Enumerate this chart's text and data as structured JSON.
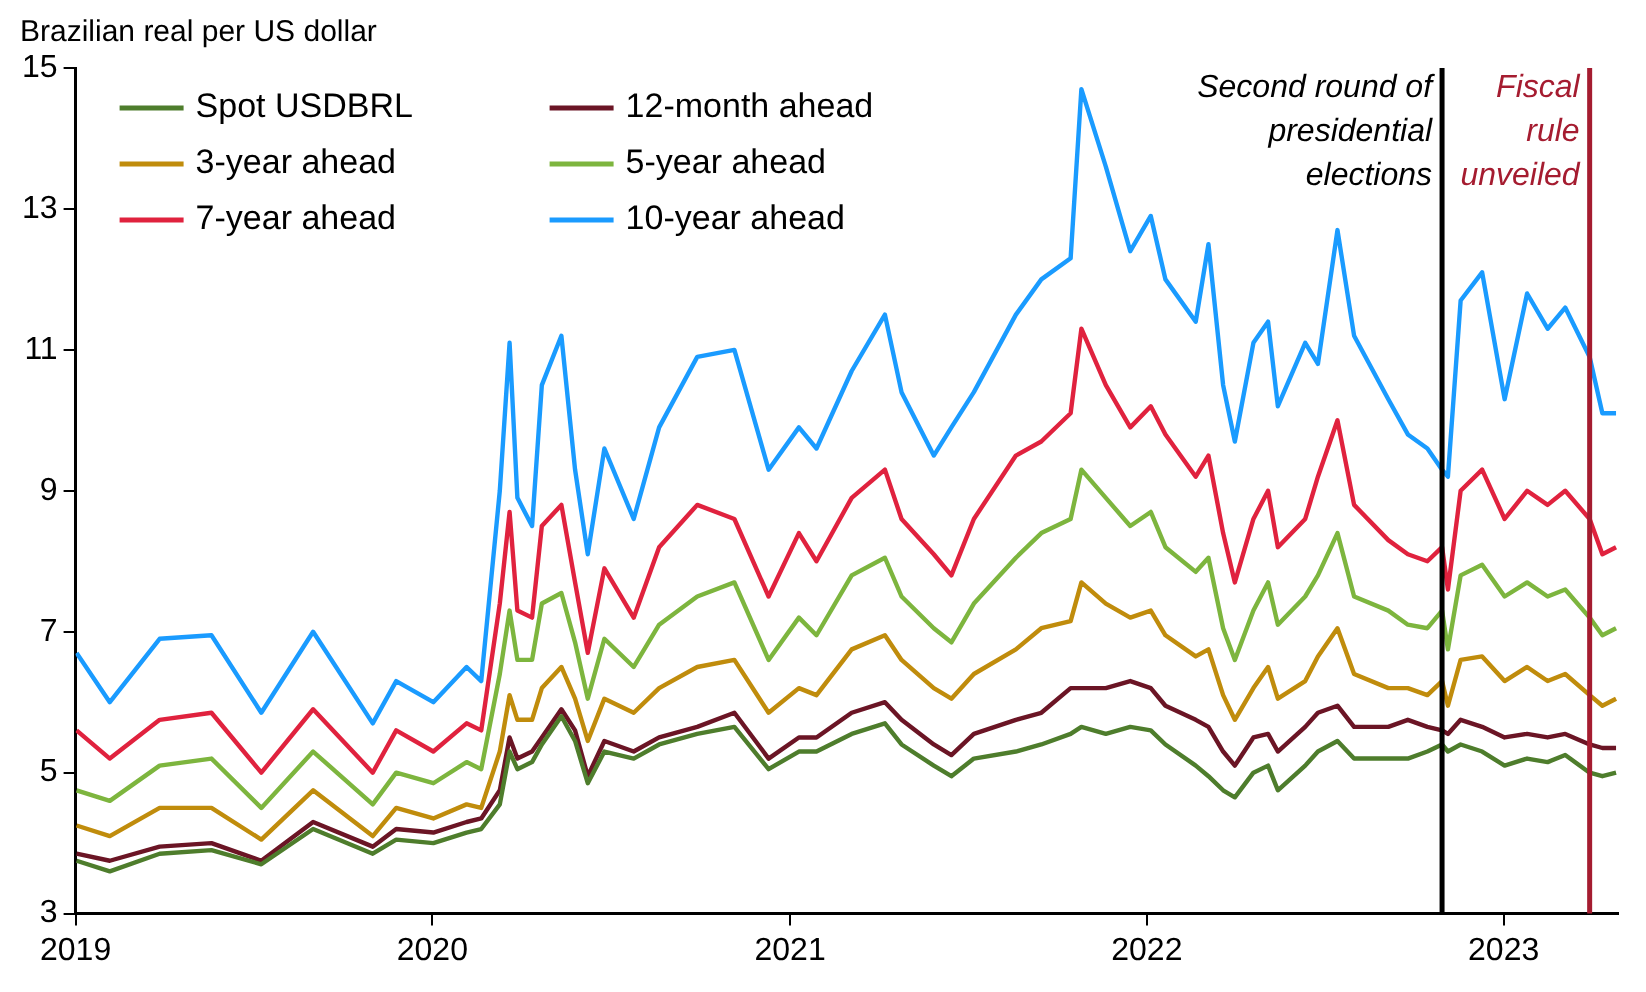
{
  "chart_data": {
    "type": "line",
    "ylabel": "Brazilian real per US dollar",
    "legend": "top left",
    "grid": false,
    "marker": "none",
    "line_style": "solid",
    "x": [
      "2019-01-02",
      "2019-02-05",
      "2019-03-28",
      "2019-05-20",
      "2019-07-10",
      "2019-09-01",
      "2019-11-01",
      "2019-11-25",
      "2020-01-02",
      "2020-02-05",
      "2020-02-20",
      "2020-03-10",
      "2020-03-20",
      "2020-03-28",
      "2020-04-12",
      "2020-04-22",
      "2020-05-12",
      "2020-05-26",
      "2020-06-08",
      "2020-06-25",
      "2020-07-25",
      "2020-08-20",
      "2020-09-28",
      "2020-11-05",
      "2020-12-10",
      "2021-01-10",
      "2021-01-28",
      "2021-03-05",
      "2021-04-08",
      "2021-04-25",
      "2021-05-28",
      "2021-06-15",
      "2021-07-08",
      "2021-08-20",
      "2021-09-15",
      "2021-10-15",
      "2021-10-26",
      "2021-11-20",
      "2021-12-15",
      "2022-01-05",
      "2022-01-20",
      "2022-02-20",
      "2022-03-05",
      "2022-03-20",
      "2022-04-01",
      "2022-04-20",
      "2022-05-05",
      "2022-05-15",
      "2022-06-12",
      "2022-06-25",
      "2022-07-15",
      "2022-08-01",
      "2022-09-05",
      "2022-09-25",
      "2022-10-15",
      "2022-10-30",
      "2022-11-05",
      "2022-11-18",
      "2022-12-10",
      "2023-01-02",
      "2023-01-25",
      "2023-02-15",
      "2023-03-05",
      "2023-03-30",
      "2023-04-12",
      "2023-04-26"
    ],
    "series": [
      {
        "name": "Spot USDBRL",
        "color": "#4e7d2c",
        "values": [
          3.75,
          3.6,
          3.85,
          3.9,
          3.7,
          4.2,
          3.85,
          4.05,
          4.0,
          4.15,
          4.2,
          4.55,
          5.3,
          5.05,
          5.15,
          5.4,
          5.8,
          5.45,
          4.85,
          5.3,
          5.2,
          5.4,
          5.55,
          5.65,
          5.05,
          5.3,
          5.3,
          5.55,
          5.7,
          5.4,
          5.1,
          4.95,
          5.2,
          5.3,
          5.4,
          5.55,
          5.65,
          5.55,
          5.65,
          5.6,
          5.4,
          5.1,
          4.95,
          4.75,
          4.65,
          5.0,
          5.1,
          4.75,
          5.1,
          5.3,
          5.45,
          5.2,
          5.2,
          5.2,
          5.3,
          5.4,
          5.3,
          5.4,
          5.3,
          5.1,
          5.2,
          5.15,
          5.25,
          5.0,
          4.95,
          5.0
        ]
      },
      {
        "name": "12-month ahead",
        "color": "#6b1525",
        "values": [
          3.85,
          3.75,
          3.95,
          4.0,
          3.75,
          4.3,
          3.95,
          4.2,
          4.15,
          4.3,
          4.35,
          4.75,
          5.5,
          5.2,
          5.3,
          5.5,
          5.9,
          5.6,
          4.95,
          5.45,
          5.3,
          5.5,
          5.65,
          5.85,
          5.2,
          5.5,
          5.5,
          5.85,
          6.0,
          5.75,
          5.4,
          5.25,
          5.55,
          5.75,
          5.85,
          6.2,
          6.2,
          6.2,
          6.3,
          6.2,
          5.95,
          5.75,
          5.65,
          5.3,
          5.1,
          5.5,
          5.55,
          5.3,
          5.65,
          5.85,
          5.95,
          5.65,
          5.65,
          5.75,
          5.65,
          5.6,
          5.55,
          5.75,
          5.65,
          5.5,
          5.55,
          5.5,
          5.55,
          5.4,
          5.35,
          5.35
        ]
      },
      {
        "name": "3-year ahead",
        "color": "#c08c0c",
        "values": [
          4.25,
          4.1,
          4.5,
          4.5,
          4.05,
          4.75,
          4.1,
          4.5,
          4.35,
          4.55,
          4.5,
          5.3,
          6.1,
          5.75,
          5.75,
          6.2,
          6.5,
          6.05,
          5.45,
          6.05,
          5.85,
          6.2,
          6.5,
          6.6,
          5.85,
          6.2,
          6.1,
          6.75,
          6.95,
          6.6,
          6.2,
          6.05,
          6.4,
          6.75,
          7.05,
          7.15,
          7.7,
          7.4,
          7.2,
          7.3,
          6.95,
          6.65,
          6.75,
          6.1,
          5.75,
          6.2,
          6.5,
          6.05,
          6.3,
          6.65,
          7.05,
          6.4,
          6.2,
          6.2,
          6.1,
          6.3,
          5.95,
          6.6,
          6.65,
          6.3,
          6.5,
          6.3,
          6.4,
          6.1,
          5.95,
          6.05
        ]
      },
      {
        "name": "5-year ahead",
        "color": "#7db53e",
        "values": [
          4.75,
          4.6,
          5.1,
          5.2,
          4.5,
          5.3,
          4.55,
          5.0,
          4.85,
          5.15,
          5.05,
          6.4,
          7.3,
          6.6,
          6.6,
          7.4,
          7.55,
          6.85,
          6.05,
          6.9,
          6.5,
          7.1,
          7.5,
          7.7,
          6.6,
          7.2,
          6.95,
          7.8,
          8.05,
          7.5,
          7.05,
          6.85,
          7.4,
          8.05,
          8.4,
          8.6,
          9.3,
          8.9,
          8.5,
          8.7,
          8.2,
          7.85,
          8.05,
          7.05,
          6.6,
          7.3,
          7.7,
          7.1,
          7.5,
          7.8,
          8.4,
          7.5,
          7.3,
          7.1,
          7.05,
          7.3,
          6.75,
          7.8,
          7.95,
          7.5,
          7.7,
          7.5,
          7.6,
          7.2,
          6.95,
          7.05
        ]
      },
      {
        "name": "7-year ahead",
        "color": "#e0223e",
        "values": [
          5.6,
          5.2,
          5.75,
          5.85,
          5.0,
          5.9,
          5.0,
          5.6,
          5.3,
          5.7,
          5.6,
          7.4,
          8.7,
          7.3,
          7.2,
          8.5,
          8.8,
          7.7,
          6.7,
          7.9,
          7.2,
          8.2,
          8.8,
          8.6,
          7.5,
          8.4,
          8.0,
          8.9,
          9.3,
          8.6,
          8.1,
          7.8,
          8.6,
          9.5,
          9.7,
          10.1,
          11.3,
          10.5,
          9.9,
          10.2,
          9.8,
          9.2,
          9.5,
          8.4,
          7.7,
          8.6,
          9.0,
          8.2,
          8.6,
          9.2,
          10.0,
          8.8,
          8.3,
          8.1,
          8.0,
          8.2,
          7.6,
          9.0,
          9.3,
          8.6,
          9.0,
          8.8,
          9.0,
          8.6,
          8.1,
          8.2
        ]
      },
      {
        "name": "10-year ahead",
        "color": "#1a9bff",
        "values": [
          6.7,
          6.0,
          6.9,
          6.95,
          5.85,
          7.0,
          5.7,
          6.3,
          6.0,
          6.5,
          6.3,
          9.0,
          11.1,
          8.9,
          8.5,
          10.5,
          11.2,
          9.3,
          8.1,
          9.6,
          8.6,
          9.9,
          10.9,
          11.0,
          9.3,
          9.9,
          9.6,
          10.7,
          11.5,
          10.4,
          9.5,
          9.9,
          10.4,
          11.5,
          12.0,
          12.3,
          14.7,
          13.6,
          12.4,
          12.9,
          12.0,
          11.4,
          12.5,
          10.5,
          9.7,
          11.1,
          11.4,
          10.2,
          11.1,
          10.8,
          12.7,
          11.2,
          10.3,
          9.8,
          9.6,
          9.3,
          9.2,
          11.7,
          12.1,
          10.3,
          11.8,
          11.3,
          11.6,
          10.9,
          10.1,
          10.1
        ]
      }
    ],
    "xlim": [
      "2019-01-01",
      "2023-04-28"
    ],
    "xticks": [
      "2019",
      "2020",
      "2021",
      "2022",
      "2023"
    ],
    "ylim": [
      3,
      15
    ],
    "yticks": [
      3,
      5,
      7,
      9,
      11,
      13,
      15
    ],
    "ref_lines": [
      {
        "axis": "x",
        "value": "2022-10-30",
        "label": "Second round of presidential elections",
        "color": "#000000",
        "line_style": "solid"
      },
      {
        "axis": "x",
        "value": "2023-03-30",
        "label": "Fiscal rule unveiled",
        "color": "#a51c30",
        "line_style": "solid"
      }
    ]
  }
}
